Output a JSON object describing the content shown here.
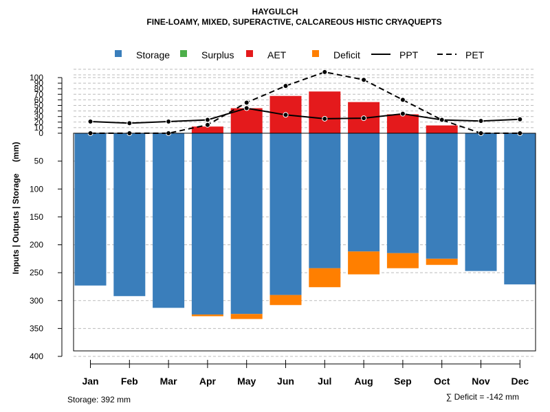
{
  "chart_data": {
    "type": "bar",
    "title": "HAYGULCH",
    "subtitle": "FINE-LOAMY, MIXED, SUPERACTIVE, CALCAREOUS HISTIC CRYAQUEPTS",
    "ylabel": "Inputs | Outputs | Storage     (mm)",
    "ylim": [
      -400,
      110
    ],
    "y_ticks_above": [
      0,
      10,
      20,
      30,
      40,
      50,
      60,
      70,
      80,
      90,
      100
    ],
    "y_ticks_below": [
      0,
      50,
      100,
      150,
      200,
      250,
      300,
      350,
      400
    ],
    "categories": [
      "Jan",
      "Feb",
      "Mar",
      "Apr",
      "May",
      "Jun",
      "Jul",
      "Aug",
      "Sep",
      "Oct",
      "Nov",
      "Dec"
    ],
    "legend": {
      "storage": "Storage",
      "surplus": "Surplus",
      "aet": "AET",
      "deficit": "Deficit",
      "ppt": "PPT",
      "pet": "PET"
    },
    "colors": {
      "storage": "#3A7EBB",
      "surplus": "#4DAF4A",
      "aet": "#E41A1C",
      "deficit": "#FF7F00",
      "line": "#000000",
      "grid": "#BBBBBB"
    },
    "series": [
      {
        "name": "Storage",
        "values": [
          273,
          292,
          313,
          325,
          324,
          290,
          242,
          212,
          215,
          225,
          247,
          271
        ]
      },
      {
        "name": "Deficit",
        "values": [
          0,
          0,
          0,
          3,
          9,
          18,
          34,
          41,
          27,
          11,
          0,
          0
        ]
      },
      {
        "name": "AET",
        "values": [
          0,
          0,
          0,
          12,
          45,
          67,
          75,
          56,
          34,
          14,
          0,
          0
        ]
      },
      {
        "name": "Surplus",
        "values": [
          0,
          0,
          0,
          0,
          0,
          0,
          0,
          0,
          0,
          0,
          0,
          0
        ]
      },
      {
        "name": "PPT",
        "values": [
          21,
          18,
          21,
          24,
          45,
          33,
          26,
          27,
          35,
          24,
          22,
          25
        ]
      },
      {
        "name": "PET",
        "values": [
          0,
          0,
          0,
          15,
          55,
          85,
          110,
          96,
          60,
          24,
          0,
          0
        ]
      }
    ],
    "footer_left": "Storage: 392 mm",
    "footer_right": "∑ Deficit = -142 mm"
  }
}
